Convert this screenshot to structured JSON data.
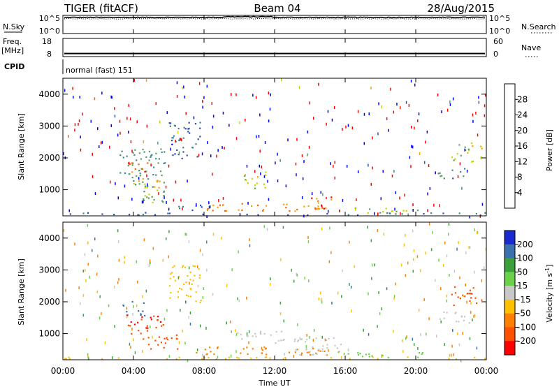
{
  "header": {
    "radar": "TIGER (fitACF)",
    "beam": "Beam 04",
    "date": "28/Aug/2015"
  },
  "nsky_panel": {
    "left_label": "N.Sky",
    "left_ticks": [
      "10^5",
      "10^0"
    ],
    "right_label": "N.Search",
    "right_ticks": [
      "10^5",
      "10^0"
    ],
    "nsky_level": 4.6,
    "nsearch_level": 4.2
  },
  "freq_panel": {
    "left_label_line1": "Freq.",
    "left_label_line2": "[MHz]",
    "left_ticks": [
      "18",
      "8"
    ],
    "right_label": "Nave",
    "right_ticks": [
      "60",
      "0"
    ],
    "freq_mhz": 9.0,
    "nave": 0
  },
  "cpid": {
    "label": "CPID",
    "text": "normal (fast) 151"
  },
  "time_axis": {
    "label": "Time UT",
    "ticks": [
      "00:00",
      "04:00",
      "08:00",
      "12:00",
      "16:00",
      "20:00",
      "00:00"
    ]
  },
  "power_colorbar": {
    "label": "Power [dB]",
    "ticks": [
      "4",
      "8",
      "12",
      "16",
      "20",
      "24",
      "28"
    ],
    "colors": [
      "#0000ff",
      "#2a4fb0",
      "#3d8a8a",
      "#5aa05a",
      "#c8d200",
      "#ffa000",
      "#ff6000",
      "#ff0000"
    ]
  },
  "velocity_colorbar": {
    "label_text": "Velocity [m s",
    "label_sup": "-1",
    "label_end": "]",
    "ticks": [
      "200",
      "100",
      "50",
      "15",
      "-15",
      "-50",
      "-100",
      "-200"
    ],
    "colors": [
      "#1a2ad0",
      "#3a6fb0",
      "#3aa03a",
      "#6ad24a",
      "#c8c8c8",
      "#ffc000",
      "#ff8000",
      "#ff5000",
      "#ff0000"
    ]
  },
  "chart_data": [
    {
      "type": "heatmap",
      "name": "power",
      "ylabel": "Slant Range [km]",
      "yticks": [
        1000,
        2000,
        3000,
        4000
      ],
      "ylim": [
        180,
        4500
      ],
      "xlim_hours": [
        0,
        24
      ],
      "regions": [
        {
          "t": [
            3.2,
            5.8
          ],
          "r": [
            1100,
            2300
          ],
          "v": 12
        },
        {
          "t": [
            3.6,
            4.8
          ],
          "r": [
            1550,
            1900
          ],
          "v": 26
        },
        {
          "t": [
            3.8,
            5.5
          ],
          "r": [
            1000,
            1400
          ],
          "v": 20
        },
        {
          "t": [
            4.5,
            6.5
          ],
          "r": [
            600,
            1000
          ],
          "v": 14
        },
        {
          "t": [
            6.5,
            8.0
          ],
          "r": [
            350,
            600
          ],
          "v": 8
        },
        {
          "t": [
            8.0,
            15.0
          ],
          "r": [
            350,
            600
          ],
          "v": 24
        },
        {
          "t": [
            14.0,
            15.5
          ],
          "r": [
            400,
            800
          ],
          "v": 27
        },
        {
          "t": [
            10.2,
            11.5
          ],
          "r": [
            1000,
            1600
          ],
          "v": 17
        },
        {
          "t": [
            15.5,
            20.5
          ],
          "r": [
            250,
            450
          ],
          "v": 16
        },
        {
          "t": [
            6.0,
            7.8
          ],
          "r": [
            2000,
            3200
          ],
          "v": 7
        },
        {
          "t": [
            21.2,
            22.8
          ],
          "r": [
            1350,
            1700
          ],
          "v": 10
        },
        {
          "t": [
            22.0,
            23.8
          ],
          "r": [
            1900,
            2500
          ],
          "v": 18
        },
        {
          "t": [
            0.0,
            24.0
          ],
          "r": [
            180,
            300
          ],
          "v": 8
        }
      ]
    },
    {
      "type": "heatmap",
      "name": "velocity",
      "ylabel": "Slant Range [km]",
      "yticks": [
        1000,
        2000,
        3000,
        4000
      ],
      "ylim": [
        180,
        4500
      ],
      "xlim_hours": [
        0,
        24
      ],
      "regions": [
        {
          "t": [
            3.3,
            4.6
          ],
          "r": [
            1550,
            2050
          ],
          "v": 150
        },
        {
          "t": [
            3.5,
            5.8
          ],
          "r": [
            1000,
            1600
          ],
          "v": -200
        },
        {
          "t": [
            4.5,
            6.5
          ],
          "r": [
            500,
            1000
          ],
          "v": -120
        },
        {
          "t": [
            7.5,
            15.0
          ],
          "r": [
            350,
            600
          ],
          "v": -80
        },
        {
          "t": [
            9.8,
            12.5
          ],
          "r": [
            700,
            1100
          ],
          "v": 0
        },
        {
          "t": [
            13.0,
            16.0
          ],
          "r": [
            300,
            900
          ],
          "v": 0
        },
        {
          "t": [
            15.5,
            20.5
          ],
          "r": [
            250,
            450
          ],
          "v": 40
        },
        {
          "t": [
            6.0,
            7.8
          ],
          "r": [
            2000,
            3200
          ],
          "v": -40
        },
        {
          "t": [
            21.2,
            23.0
          ],
          "r": [
            1300,
            1700
          ],
          "v": 0
        },
        {
          "t": [
            22.0,
            23.8
          ],
          "r": [
            1900,
            2500
          ],
          "v": -150
        },
        {
          "t": [
            0.0,
            24.0
          ],
          "r": [
            180,
            300
          ],
          "v": -30
        }
      ]
    }
  ]
}
